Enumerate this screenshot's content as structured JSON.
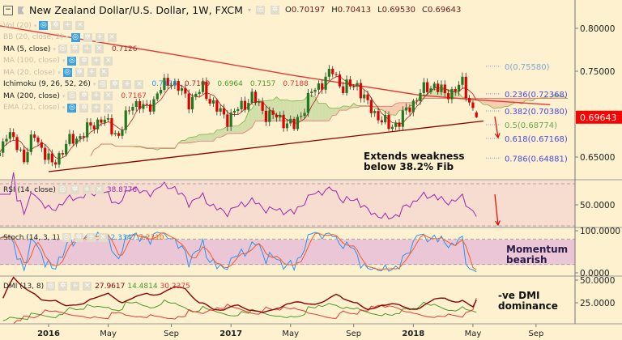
{
  "header": {
    "symbol_title": "New Zealand Dollar/U.S. Dollar, 1W, FXCM",
    "open": "0.70197",
    "high": "0.70413",
    "low": "0.69530",
    "close": "0.69643",
    "o_label": "O",
    "h_label": "H",
    "l_label": "L",
    "c_label": "C"
  },
  "indicators": [
    {
      "name": "Vol (20)",
      "faded": true,
      "values": []
    },
    {
      "name": "BB (20, close, 2)",
      "faded": true,
      "values": []
    },
    {
      "name": "MA (5, close)",
      "faded": false,
      "values": [
        {
          "v": "0.7126",
          "color": "#b22222"
        }
      ]
    },
    {
      "name": "MA (100, close)",
      "faded": true,
      "values": []
    },
    {
      "name": "MA (20, close)",
      "faded": true,
      "values": []
    },
    {
      "name": "Ichimoku (9, 26, 52, 26)",
      "faded": false,
      "values": [
        {
          "v": "0.7174",
          "color": "#2196f3"
        },
        {
          "v": "0.7109",
          "color": "#b22222"
        },
        {
          "v": "0.6964",
          "color": "#4a9a2a"
        },
        {
          "v": "0.7157",
          "color": "#4a9a2a"
        },
        {
          "v": "0.7188",
          "color": "#e53935"
        }
      ]
    },
    {
      "name": "MA (200, close)",
      "faded": false,
      "values": [
        {
          "v": "0.7167",
          "color": "#e53935"
        }
      ]
    },
    {
      "name": "EMA (21, close)",
      "faded": true,
      "values": []
    }
  ],
  "panes": {
    "rsi": {
      "label": "RSI (14, close)",
      "value": "38.8776",
      "color": "#9c27b0"
    },
    "stoch": {
      "label": "Stoch (14, 3, 1)",
      "k_value": "2.3347",
      "d_value": "7.2310",
      "k_color": "#2196f3",
      "d_color": "#ff5722"
    },
    "dmi": {
      "label": "DMI (13, 8)",
      "adx_value": "27.9617",
      "plus_value": "14.4814",
      "minus_value": "30.2375",
      "adx_color": "#8b0000",
      "plus_color": "#4a9a2a",
      "minus_color": "#e53935"
    }
  },
  "annotations": {
    "main_note_line1": "Extends weakness",
    "main_note_line2": "below 38.2% Fib",
    "stoch_note_line1": "Momentum",
    "stoch_note_line2": "bearish",
    "dmi_note_line1": "-ve DMI",
    "dmi_note_line2": "dominance"
  },
  "colors": {
    "background": "#fdf1cf",
    "up": "#1e7a1e",
    "down": "#e00000",
    "ma200": "#e53935",
    "trendline": "#8b0000",
    "last_price": "#ff0000"
  },
  "chart_data": {
    "type": "candlestick",
    "timeframe": "1W",
    "last_candle": {
      "date": "2018-05-07",
      "open": 0.70197,
      "high": 0.70413,
      "low": 0.6953,
      "close": 0.69643
    },
    "close_path": [
      [
        "2015-09-28",
        0.655
      ],
      [
        "2015-10-12",
        0.68
      ],
      [
        "2015-11-16",
        0.65
      ],
      [
        "2015-12-07",
        0.675
      ],
      [
        "2016-01-11",
        0.64
      ],
      [
        "2016-02-08",
        0.665
      ],
      [
        "2016-03-07",
        0.675
      ],
      [
        "2016-04-18",
        0.695
      ],
      [
        "2016-05-23",
        0.675
      ],
      [
        "2016-06-20",
        0.715
      ],
      [
        "2016-07-18",
        0.705
      ],
      [
        "2016-08-15",
        0.73
      ],
      [
        "2016-09-05",
        0.74
      ],
      [
        "2016-10-10",
        0.715
      ],
      [
        "2016-11-07",
        0.73
      ],
      [
        "2016-12-05",
        0.705
      ],
      [
        "2016-12-26",
        0.695
      ],
      [
        "2017-02-13",
        0.72
      ],
      [
        "2017-03-13",
        0.7
      ],
      [
        "2017-04-10",
        0.695
      ],
      [
        "2017-05-08",
        0.685
      ],
      [
        "2017-06-12",
        0.725
      ],
      [
        "2017-07-24",
        0.75
      ],
      [
        "2017-08-14",
        0.73
      ],
      [
        "2017-09-11",
        0.735
      ],
      [
        "2017-10-02",
        0.71
      ],
      [
        "2017-11-13",
        0.685
      ],
      [
        "2017-12-04",
        0.692
      ],
      [
        "2018-01-15",
        0.725
      ],
      [
        "2018-02-12",
        0.735
      ],
      [
        "2018-03-05",
        0.722
      ],
      [
        "2018-04-09",
        0.735
      ],
      [
        "2018-05-07",
        0.69643
      ]
    ],
    "ma200_path": [
      [
        "2015-09-28",
        0.803
      ],
      [
        "2016-09-05",
        0.77
      ],
      [
        "2017-05-08",
        0.745
      ],
      [
        "2018-01-15",
        0.722
      ],
      [
        "2018-05-07",
        0.7167
      ],
      [
        "2018-10-01",
        0.711
      ]
    ],
    "trendline": [
      [
        "2016-01-04",
        0.633
      ],
      [
        "2018-05-21",
        0.692
      ]
    ],
    "fib_levels": [
      {
        "label": "0(0.75580)",
        "price": 0.7558,
        "color": "#7fa7d9"
      },
      {
        "label": "0.236(0.72368)",
        "price": 0.72368,
        "color": "#4a4adf"
      },
      {
        "label": "0.382(0.70380)",
        "price": 0.7038,
        "color": "#4a4adf"
      },
      {
        "label": "0.5(0.68774)",
        "price": 0.68774,
        "color": "#6aa84f"
      },
      {
        "label": "0.618(0.67168)",
        "price": 0.67168,
        "color": "#4a4adf"
      },
      {
        "label": "0.786(0.64881)",
        "price": 0.64881,
        "color": "#4a4adf"
      }
    ],
    "price_axis": {
      "ticks": [
        "0.80000",
        "0.75000",
        "0.65000"
      ],
      "tick_values": [
        0.8,
        0.75,
        0.65
      ],
      "last_price": "0.69643",
      "last_value": 0.69643
    },
    "rsi_axis": {
      "ticks": [
        "50.0000"
      ],
      "tick_values": [
        50
      ],
      "bands": [
        70,
        30
      ]
    },
    "stoch_axis": {
      "ticks": [
        "100.0000",
        "0.0000"
      ],
      "tick_values": [
        100,
        0
      ],
      "bands": [
        80,
        20
      ]
    },
    "dmi_axis": {
      "ticks": [
        "50.0000",
        "25.0000"
      ],
      "tick_values": [
        50,
        25
      ]
    },
    "x_ticks": [
      {
        "label": "2016",
        "date": "2016-01-04",
        "bold": true
      },
      {
        "label": "May",
        "date": "2016-05-02"
      },
      {
        "label": "Sep",
        "date": "2016-09-05"
      },
      {
        "label": "2017",
        "date": "2017-01-02",
        "bold": true
      },
      {
        "label": "May",
        "date": "2017-05-01"
      },
      {
        "label": "Sep",
        "date": "2017-09-04"
      },
      {
        "label": "2018",
        "date": "2018-01-01",
        "bold": true
      },
      {
        "label": "May",
        "date": "2018-04-30"
      },
      {
        "label": "Sep",
        "date": "2018-09-03"
      }
    ]
  }
}
